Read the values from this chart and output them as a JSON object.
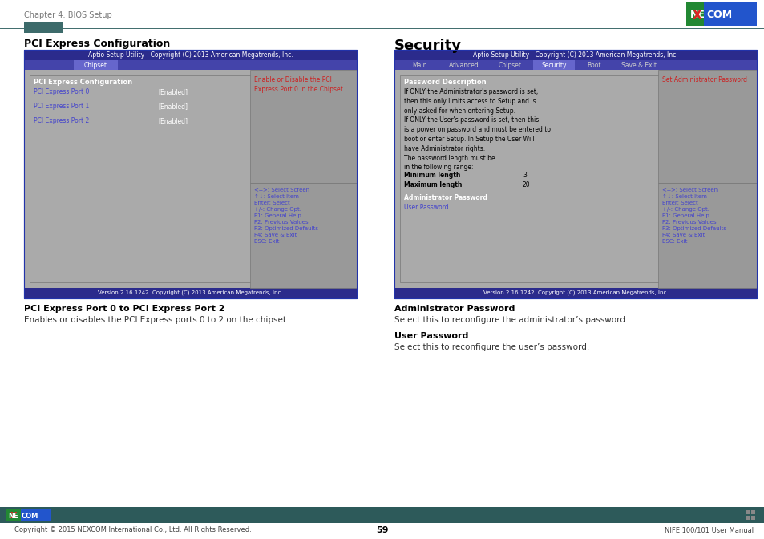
{
  "page_bg": "#ffffff",
  "header_text": "Chapter 4: BIOS Setup",
  "accent_bar_color": "#3d6b6b",
  "accent_rect_color": "#3d6b6b",
  "footer_bar_color": "#2d5a5a",
  "footer_text_left": "Copyright © 2015 NEXCOM International Co., Ltd. All Rights Reserved.",
  "footer_text_center": "59",
  "footer_text_right": "NIFE 100/101 User Manual",
  "bios_header_bg": "#2b2b8c",
  "bios_tab_bar_bg": "#4444aa",
  "bios_active_tab_bg": "#6666cc",
  "bios_body_bg": "#aaaaaa",
  "bios_inner_border": "#888888",
  "bios_right_panel_bg": "#999999",
  "bios_help_panel_bg": "#999999",
  "bios_bottom_bar_bg": "#2b2b8c",
  "bios_bottom_text": "Version 2.16.1242. Copyright (C) 2013 American Megatrends, Inc.",
  "bios_header_text": "Aptio Setup Utility - Copyright (C) 2013 American Megatrends, Inc.",
  "section1_title": "PCI Express Configuration",
  "section1_subtitle": "PCI Express Port 0 to PCI Express Port 2",
  "section1_desc": "Enables or disables the PCI Express ports 0 to 2 on the chipset.",
  "section2_title": "Security",
  "section2_subtitle1": "Administrator Password",
  "section2_desc1": "Select this to reconfigure the administrator’s password.",
  "section2_subtitle2": "User Password",
  "section2_desc2": "Select this to reconfigure the user’s password.",
  "pci_tab_label": "Chipset",
  "pci_content_title": "PCI Express Configuration",
  "pci_item1": "PCI Express Port 0",
  "pci_item1_val": "[Enabled]",
  "pci_item2": "PCI Express Port 1",
  "pci_item2_val": "[Enabled]",
  "pci_item3": "PCI Express Port 2",
  "pci_item3_val": "[Enabled]",
  "pci_right_text": "Enable or Disable the PCI\nExpress Port 0 in the Chipset.",
  "pci_help_text": "<-->: Select Screen\n↑↓: Select Item\nEnter: Select\n+/-: Change Opt.\nF1: General Help\nF2: Previous Values\nF3: Optimized Defaults\nF4: Save & Exit\nESC: Exit",
  "sec_tabs": [
    "Main",
    "Advanced",
    "Chipset",
    "Security",
    "Boot",
    "Save & Exit"
  ],
  "sec_active_tab": "Security",
  "sec_tab_positions": [
    8,
    58,
    118,
    173,
    228,
    270
  ],
  "sec_tab_widths": [
    48,
    58,
    52,
    52,
    42,
    70
  ],
  "sec_pwd_desc_title": "Password Description",
  "sec_pwd_desc_body": "If ONLY the Administrator's password is set,\nthen this only limits access to Setup and is\nonly asked for when entering Setup.\nIf ONLY the User's password is set, then this\nis a power on password and must be entered to\nboot or enter Setup. In Setup the User Will\nhave Administrator rights.\nThe password length must be\nin the following range:",
  "sec_min_label": "Minimum length",
  "sec_min_val": "3",
  "sec_max_label": "Maximum length",
  "sec_max_val": "20",
  "sec_admin_pwd": "Administrator Password",
  "sec_user_pwd": "User Password",
  "sec_right_text": "Set Administrator Password",
  "sec_help_text": "<-->: Select Screen\n↑↓: Select Item\nEnter: Select\n+/-: Change Opt.\nF1: General Help\nF2: Previous Values\nF3: Optimized Defaults\nF4: Save & Exit\nESC: Exit",
  "nexcom_red": "#cc0000",
  "nexcom_blue": "#2255cc",
  "nexcom_green": "#22aa22",
  "item_blue": "#4444cc",
  "help_blue": "#4444cc",
  "right_text_red": "#cc2222"
}
